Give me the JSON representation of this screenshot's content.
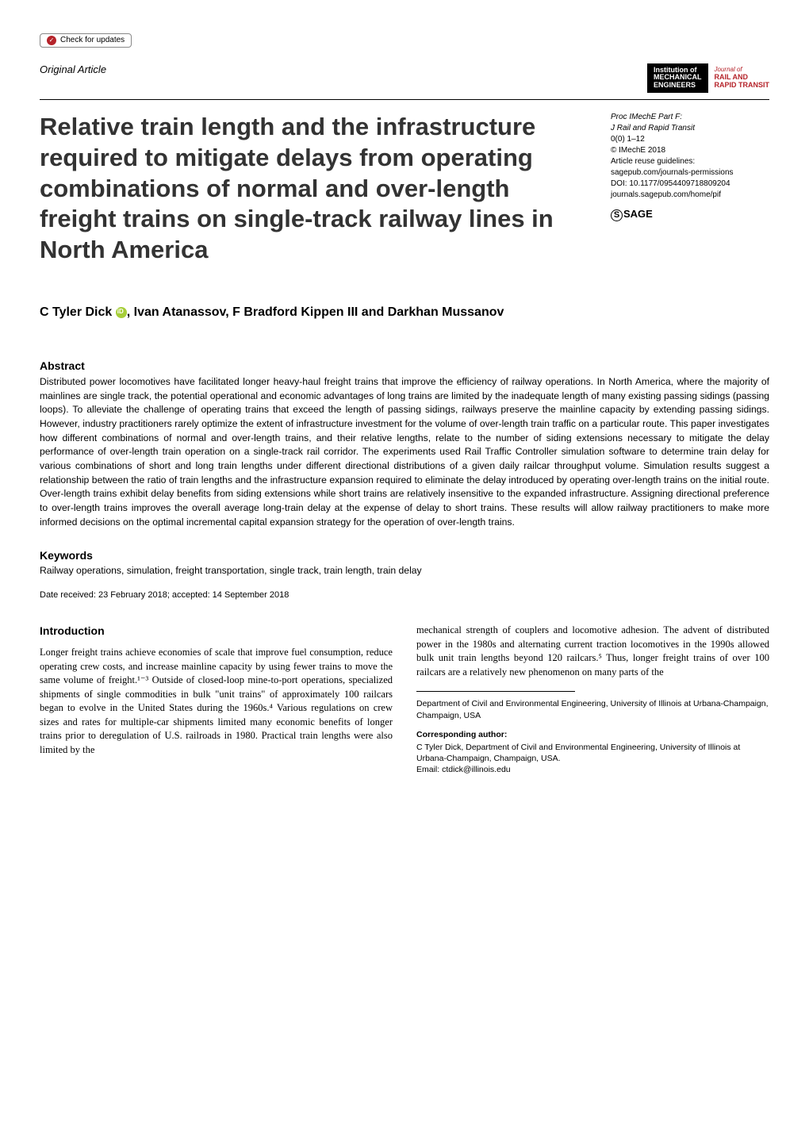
{
  "check_updates": "Check for updates",
  "original_article": "Original Article",
  "logo_mech_line1": "Institution of",
  "logo_mech_line2": "MECHANICAL",
  "logo_mech_line3": "ENGINEERS",
  "logo_rail_journal": "Journal of",
  "logo_rail_line1": "RAIL AND",
  "logo_rail_line2": "RAPID TRANSIT",
  "title": "Relative train length and the infrastructure required to mitigate delays from operating combinations of normal and over-length freight trains on single-track railway lines in North America",
  "meta": {
    "journal": "Proc IMechE Part F:",
    "journal2": "J Rail and Rapid Transit",
    "pages": "0(0) 1–12",
    "copyright": "© IMechE 2018",
    "reuse": "Article reuse guidelines:",
    "reuse_url": "sagepub.com/journals-permissions",
    "doi": "DOI: 10.1177/0954409718809204",
    "journal_url": "journals.sagepub.com/home/pif",
    "sage": "SAGE"
  },
  "authors": "C Tyler Dick, Ivan Atanassov, F Bradford Kippen III and Darkhan Mussanov",
  "author_part1": "C Tyler Dick",
  "author_part2": ", Ivan Atanassov, F Bradford Kippen III and Darkhan Mussanov",
  "abstract_heading": "Abstract",
  "abstract": "Distributed power locomotives have facilitated longer heavy-haul freight trains that improve the efficiency of railway operations. In North America, where the majority of mainlines are single track, the potential operational and economic advantages of long trains are limited by the inadequate length of many existing passing sidings (passing loops). To alleviate the challenge of operating trains that exceed the length of passing sidings, railways preserve the mainline capacity by extending passing sidings. However, industry practitioners rarely optimize the extent of infrastructure investment for the volume of over-length train traffic on a particular route. This paper investigates how different combinations of normal and over-length trains, and their relative lengths, relate to the number of siding extensions necessary to mitigate the delay performance of over-length train operation on a single-track rail corridor. The experiments used Rail Traffic Controller simulation software to determine train delay for various combinations of short and long train lengths under different directional distributions of a given daily railcar throughput volume. Simulation results suggest a relationship between the ratio of train lengths and the infrastructure expansion required to eliminate the delay introduced by operating over-length trains on the initial route. Over-length trains exhibit delay benefits from siding extensions while short trains are relatively insensitive to the expanded infrastructure. Assigning directional preference to over-length trains improves the overall average long-train delay at the expense of delay to short trains. These results will allow railway practitioners to make more informed decisions on the optimal incremental capital expansion strategy for the operation of over-length trains.",
  "keywords_heading": "Keywords",
  "keywords": "Railway operations, simulation, freight transportation, single track, train length, train delay",
  "date_received": "Date received: 23 February 2018; accepted: 14 September 2018",
  "intro_heading": "Introduction",
  "intro_col1": "Longer freight trains achieve economies of scale that improve fuel consumption, reduce operating crew costs, and increase mainline capacity by using fewer trains to move the same volume of freight.¹⁻³ Outside of closed-loop mine-to-port operations, specialized shipments of single commodities in bulk \"unit trains\" of approximately 100 railcars began to evolve in the United States during the 1960s.⁴ Various regulations on crew sizes and rates for multiple-car shipments limited many economic benefits of longer trains prior to deregulation of U.S. railroads in 1980. Practical train lengths were also limited by the",
  "intro_col2": "mechanical strength of couplers and locomotive adhesion. The advent of distributed power in the 1980s and alternating current traction locomotives in the 1990s allowed bulk unit train lengths beyond 120 railcars.⁵ Thus, longer freight trains of over 100 railcars are a relatively new phenomenon on many parts of the",
  "affiliation": "Department of Civil and Environmental Engineering, University of Illinois at Urbana-Champaign, Champaign, USA",
  "corresponding_heading": "Corresponding author:",
  "corresponding": "C Tyler Dick, Department of Civil and Environmental Engineering, University of Illinois at Urbana-Champaign, Champaign, USA.",
  "email": "Email: ctdick@illinois.edu"
}
